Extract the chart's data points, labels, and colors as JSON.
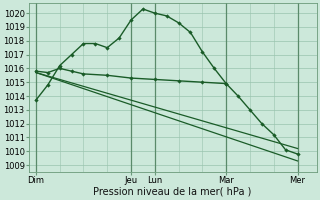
{
  "title": "",
  "xlabel": "Pression niveau de la mer( hPa )",
  "ylabel": "",
  "bg_color": "#cce8da",
  "grid_color": "#99c4ae",
  "line_color": "#1a5c28",
  "ylim": [
    1008.5,
    1020.7
  ],
  "yticks": [
    1009,
    1010,
    1011,
    1012,
    1013,
    1014,
    1015,
    1016,
    1017,
    1018,
    1019,
    1020
  ],
  "major_day_labels": [
    "Dim",
    "Jeu",
    "Lun",
    "Mar",
    "Mer"
  ],
  "major_day_positions": [
    0,
    4,
    5,
    8,
    11
  ],
  "vline_positions": [
    0,
    4,
    5,
    8,
    11
  ],
  "lines": [
    {
      "x": [
        0,
        0.5,
        1,
        1.5,
        2,
        2.5,
        3,
        3.5,
        4,
        4.5,
        5,
        5.5,
        6,
        6.5,
        7,
        7.5,
        8,
        8.5,
        9,
        9.5,
        10,
        10.5,
        11
      ],
      "y": [
        1013.7,
        1014.8,
        1016.2,
        1017.0,
        1017.8,
        1017.8,
        1017.5,
        1018.2,
        1019.5,
        1020.3,
        1020.0,
        1019.8,
        1019.3,
        1018.6,
        1017.2,
        1016.0,
        1014.9,
        1014.0,
        1013.0,
        1012.0,
        1011.2,
        1010.1,
        1009.8
      ],
      "has_markers": true
    },
    {
      "x": [
        0,
        0.5,
        1,
        1.5,
        2,
        3,
        4,
        5,
        6,
        7,
        8
      ],
      "y": [
        1015.8,
        1015.7,
        1016.0,
        1015.8,
        1015.6,
        1015.5,
        1015.3,
        1015.2,
        1015.1,
        1015.0,
        1014.9
      ],
      "has_markers": true
    },
    {
      "x": [
        0,
        11
      ],
      "y": [
        1015.7,
        1009.3
      ],
      "has_markers": false
    },
    {
      "x": [
        0,
        11
      ],
      "y": [
        1015.7,
        1010.2
      ],
      "has_markers": false
    }
  ]
}
